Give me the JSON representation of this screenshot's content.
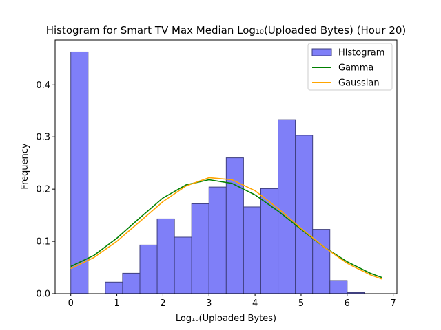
{
  "chart_data": {
    "type": "bar",
    "title": "Histogram for Smart TV Max Median Log₁₀(Uploaded Bytes) (Hour 20)",
    "xlabel": "Log₁₀(Uploaded Bytes)",
    "ylabel": "Frequency",
    "xlim": [
      -0.34,
      7.08
    ],
    "ylim": [
      0,
      0.486
    ],
    "xticks": [
      0,
      1,
      2,
      3,
      4,
      5,
      6,
      7
    ],
    "yticks": [
      0.0,
      0.1,
      0.2,
      0.3,
      0.4
    ],
    "grid": false,
    "legend_position": "top-right",
    "histogram": {
      "name": "Histogram",
      "color": "#7f7ff8",
      "edge_color": "#3f3f7f",
      "bin_width": 0.375,
      "bins": [
        {
          "x0": 0.0,
          "x1": 0.375,
          "value": 0.463
        },
        {
          "x0": 0.375,
          "x1": 0.75,
          "value": 0.0
        },
        {
          "x0": 0.75,
          "x1": 1.125,
          "value": 0.022
        },
        {
          "x0": 1.125,
          "x1": 1.5,
          "value": 0.039
        },
        {
          "x0": 1.5,
          "x1": 1.875,
          "value": 0.093
        },
        {
          "x0": 1.875,
          "x1": 2.25,
          "value": 0.143
        },
        {
          "x0": 2.25,
          "x1": 2.625,
          "value": 0.108
        },
        {
          "x0": 2.625,
          "x1": 3.0,
          "value": 0.172
        },
        {
          "x0": 3.0,
          "x1": 3.375,
          "value": 0.204
        },
        {
          "x0": 3.375,
          "x1": 3.75,
          "value": 0.26
        },
        {
          "x0": 3.75,
          "x1": 4.125,
          "value": 0.166
        },
        {
          "x0": 4.125,
          "x1": 4.5,
          "value": 0.201
        },
        {
          "x0": 4.5,
          "x1": 4.875,
          "value": 0.333
        },
        {
          "x0": 4.875,
          "x1": 5.25,
          "value": 0.303
        },
        {
          "x0": 5.25,
          "x1": 5.625,
          "value": 0.123
        },
        {
          "x0": 5.625,
          "x1": 6.0,
          "value": 0.025
        },
        {
          "x0": 6.0,
          "x1": 6.375,
          "value": 0.002
        }
      ]
    },
    "series": [
      {
        "name": "Gamma",
        "type": "line",
        "color": "#008000",
        "x": [
          0.0,
          0.5,
          1.0,
          1.5,
          2.0,
          2.5,
          3.0,
          3.5,
          4.0,
          4.5,
          5.0,
          5.5,
          6.0,
          6.5,
          6.75
        ],
        "y": [
          0.052,
          0.073,
          0.106,
          0.145,
          0.183,
          0.208,
          0.218,
          0.211,
          0.189,
          0.158,
          0.123,
          0.089,
          0.061,
          0.039,
          0.031
        ]
      },
      {
        "name": "Gaussian",
        "type": "line",
        "color": "#ffa500",
        "x": [
          0.0,
          0.5,
          1.0,
          1.5,
          2.0,
          2.5,
          3.0,
          3.5,
          4.0,
          4.5,
          5.0,
          5.5,
          6.0,
          6.5,
          6.75
        ],
        "y": [
          0.048,
          0.069,
          0.1,
          0.138,
          0.176,
          0.206,
          0.222,
          0.218,
          0.197,
          0.163,
          0.125,
          0.089,
          0.058,
          0.036,
          0.028
        ]
      }
    ]
  }
}
